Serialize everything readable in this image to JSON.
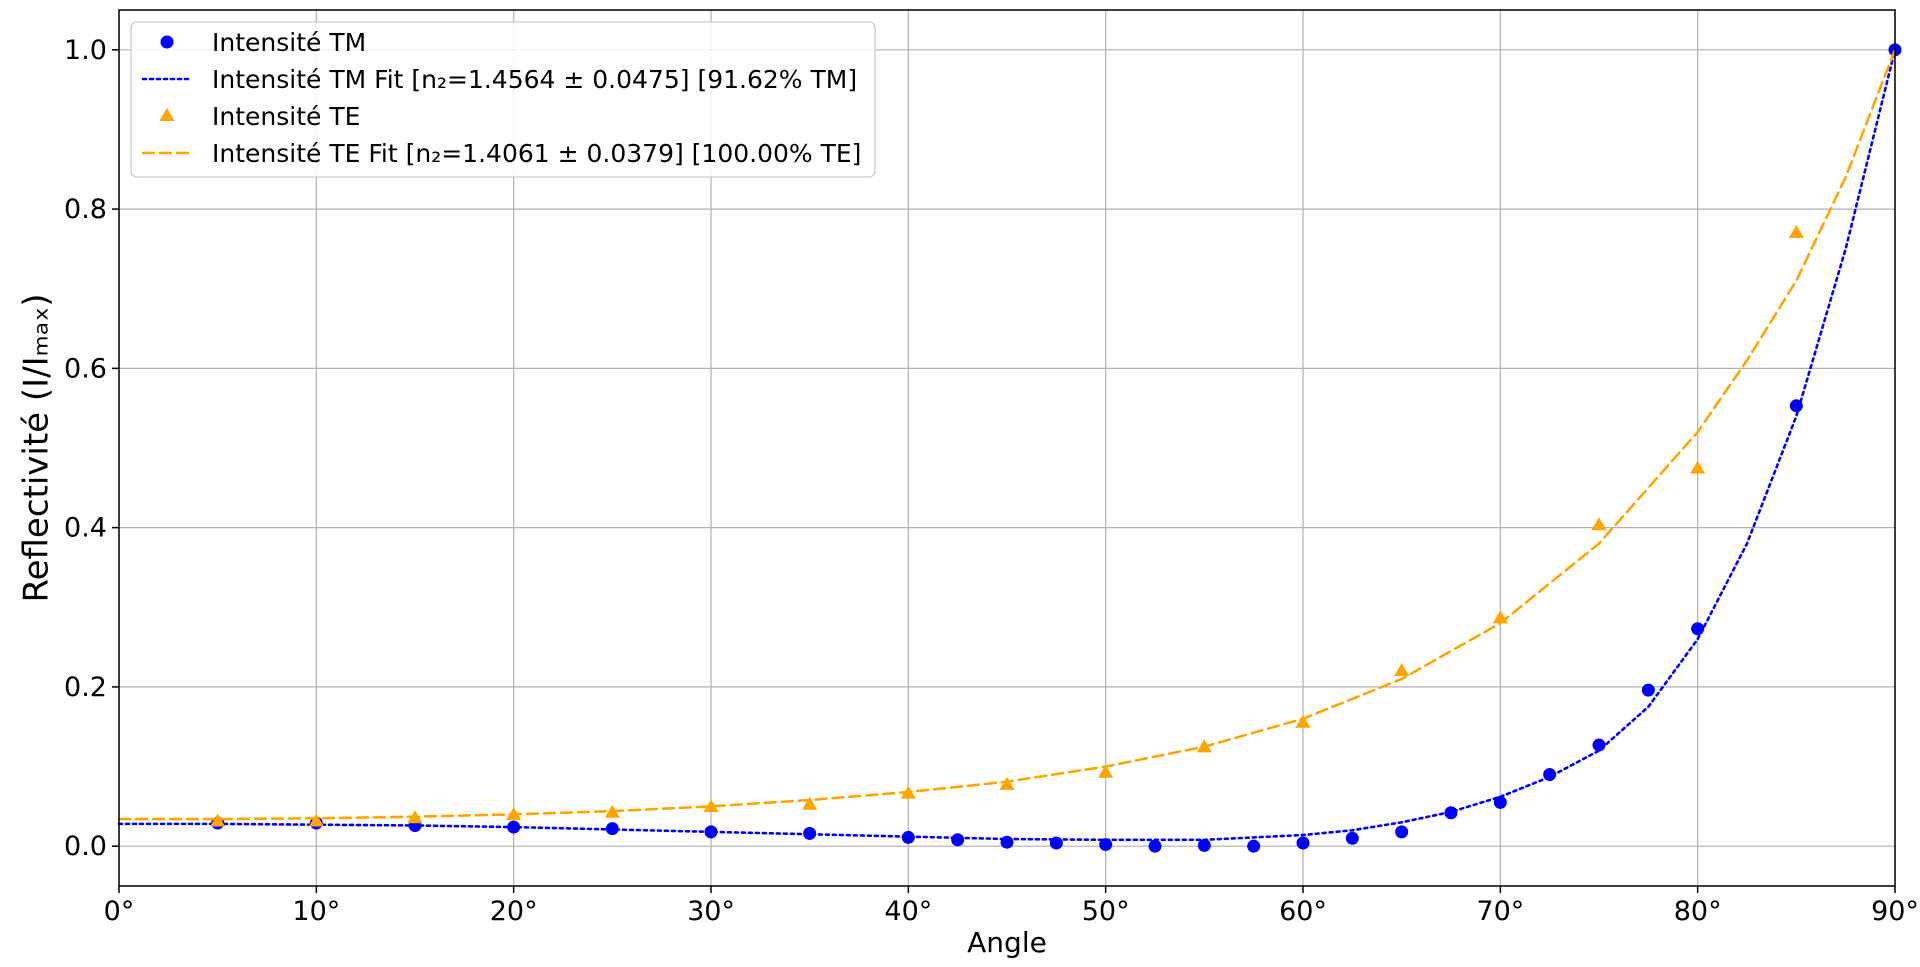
{
  "chart_data": {
    "type": "scatter",
    "title": "",
    "xlabel": "Angle",
    "ylabel": "Reflectivité (I/Iₘₐₓ)",
    "xlim": [
      0,
      90
    ],
    "ylim": [
      -0.05,
      1.05
    ],
    "x_ticks": [
      0,
      10,
      20,
      30,
      40,
      50,
      60,
      70,
      80,
      90
    ],
    "x_tick_labels": [
      "0°",
      "10°",
      "20°",
      "30°",
      "40°",
      "50°",
      "60°",
      "70°",
      "80°",
      "90°"
    ],
    "y_ticks": [
      0.0,
      0.2,
      0.4,
      0.6,
      0.8,
      1.0
    ],
    "y_tick_labels": [
      "0.0",
      "0.2",
      "0.4",
      "0.6",
      "0.8",
      "1.0"
    ],
    "grid": true,
    "legend_position": "top-left",
    "series": [
      {
        "name": "Intensité TM",
        "kind": "points",
        "marker": "circle",
        "color": "#0000ff",
        "x": [
          5,
          10,
          15,
          20,
          25,
          30,
          35,
          40,
          42.5,
          45,
          47.5,
          50,
          52.5,
          55,
          57.5,
          60,
          62.5,
          65,
          67.5,
          70,
          72.5,
          75,
          77.5,
          80,
          85,
          90
        ],
        "y": [
          0.029,
          0.029,
          0.026,
          0.024,
          0.022,
          0.018,
          0.016,
          0.011,
          0.008,
          0.005,
          0.004,
          0.002,
          0.0,
          0.001,
          0.0,
          0.004,
          0.01,
          0.018,
          0.042,
          0.055,
          0.09,
          0.127,
          0.196,
          0.273,
          0.553,
          1.0
        ]
      },
      {
        "name": "Intensité TM Fit [n₂=1.4564 ± 0.0475] [91.62% TM]",
        "kind": "line",
        "style": "dotted",
        "color": "#0000ff",
        "x": [
          0,
          5,
          10,
          15,
          20,
          25,
          30,
          35,
          40,
          45,
          50,
          55,
          60,
          62.5,
          65,
          67.5,
          70,
          72.5,
          75,
          77.5,
          80,
          82.5,
          85,
          87.5,
          90
        ],
        "y": [
          0.028,
          0.028,
          0.027,
          0.026,
          0.024,
          0.021,
          0.018,
          0.015,
          0.012,
          0.009,
          0.008,
          0.008,
          0.014,
          0.02,
          0.03,
          0.043,
          0.062,
          0.087,
          0.12,
          0.175,
          0.26,
          0.38,
          0.54,
          0.75,
          1.0
        ]
      },
      {
        "name": "Intensité TE",
        "kind": "points",
        "marker": "triangle",
        "color": "#ffa500",
        "x": [
          5,
          10,
          15,
          20,
          25,
          30,
          35,
          40,
          45,
          50,
          55,
          60,
          65,
          70,
          75,
          80,
          85
        ],
        "y": [
          0.031,
          0.031,
          0.035,
          0.039,
          0.042,
          0.049,
          0.052,
          0.066,
          0.077,
          0.092,
          0.124,
          0.155,
          0.22,
          0.286,
          0.403,
          0.474,
          0.77
        ]
      },
      {
        "name": "Intensité TE Fit [n₂=1.4061 ± 0.0379] [100.00% TE]",
        "kind": "line",
        "style": "dashed",
        "color": "#ffa500",
        "x": [
          0,
          5,
          10,
          15,
          20,
          25,
          30,
          35,
          40,
          45,
          50,
          55,
          60,
          65,
          70,
          75,
          80,
          82.5,
          85,
          87.5,
          90
        ],
        "y": [
          0.034,
          0.034,
          0.035,
          0.037,
          0.04,
          0.044,
          0.05,
          0.058,
          0.068,
          0.081,
          0.1,
          0.125,
          0.16,
          0.21,
          0.28,
          0.38,
          0.52,
          0.61,
          0.71,
          0.84,
          1.0
        ]
      }
    ]
  }
}
